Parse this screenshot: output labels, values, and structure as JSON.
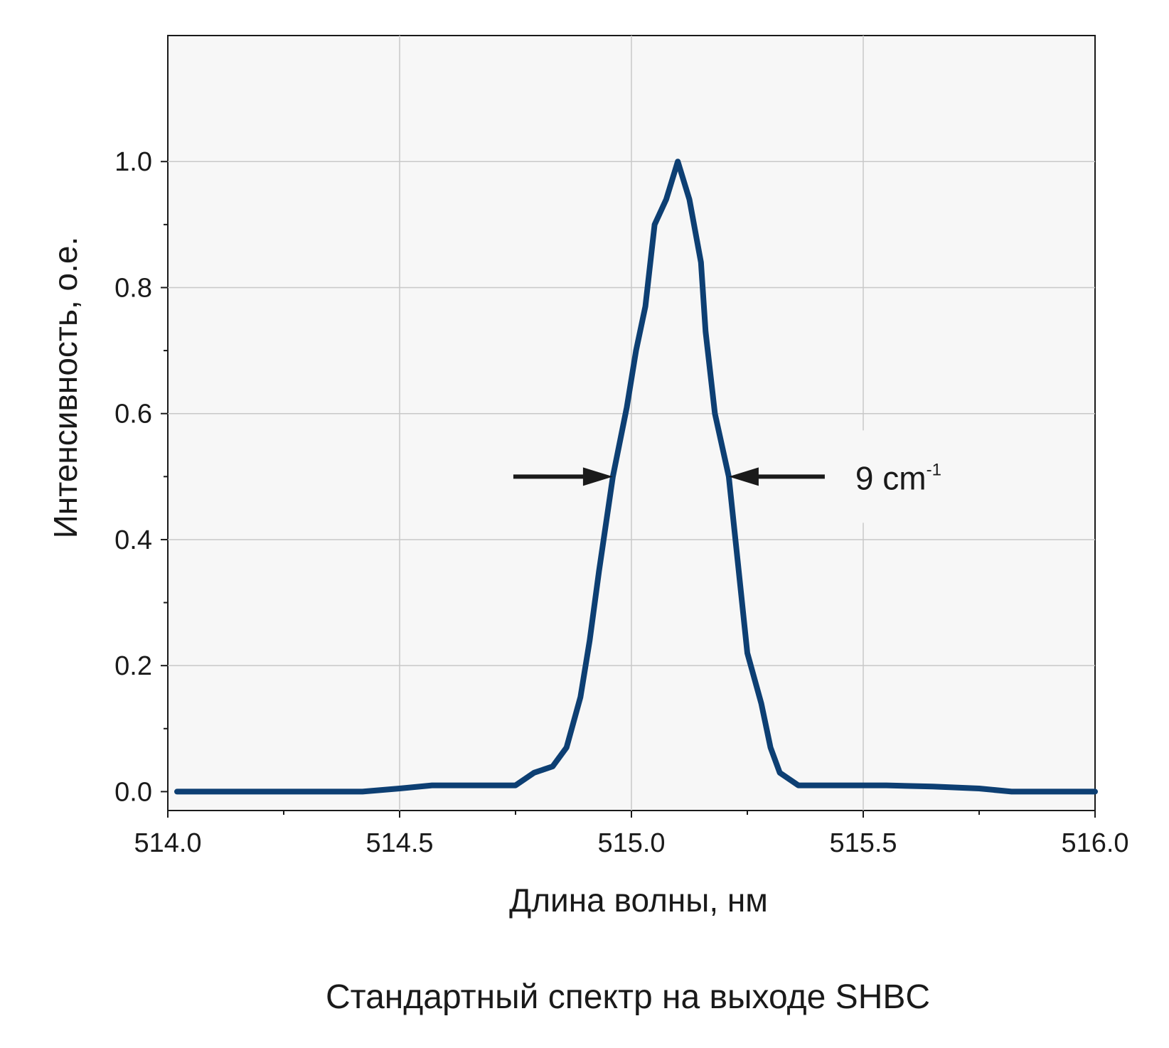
{
  "chart_data": {
    "type": "line",
    "xlabel": "Длина волны, нм",
    "ylabel": "Интенсивность, о.е.",
    "caption": "Стандартный спектр на выходе SHBC",
    "xlim": [
      514.0,
      516.0
    ],
    "ylim": [
      -0.03,
      1.2
    ],
    "x_ticks": [
      "514.0",
      "514.5",
      "515.0",
      "515.5",
      "516.0"
    ],
    "x_tick_values": [
      514.0,
      514.5,
      515.0,
      515.5,
      516.0
    ],
    "y_ticks": [
      "0.0",
      "0.2",
      "0.4",
      "0.6",
      "0.8",
      "1.0"
    ],
    "y_tick_values": [
      0.0,
      0.2,
      0.4,
      0.6,
      0.8,
      1.0
    ],
    "grid": true,
    "series": [
      {
        "color": "#0d3f73",
        "x": [
          514.02,
          514.25,
          514.42,
          514.5,
          514.57,
          514.65,
          514.75,
          514.79,
          514.83,
          514.86,
          514.89,
          514.91,
          514.93,
          514.96,
          514.99,
          515.01,
          515.03,
          515.05,
          515.075,
          515.1,
          515.125,
          515.15,
          515.16,
          515.18,
          515.21,
          515.23,
          515.25,
          515.28,
          515.3,
          515.32,
          515.36,
          515.45,
          515.55,
          515.65,
          515.75,
          515.82,
          515.9,
          516.0
        ],
        "y": [
          0.0,
          0.0,
          0.0,
          0.005,
          0.01,
          0.01,
          0.01,
          0.03,
          0.04,
          0.07,
          0.15,
          0.24,
          0.35,
          0.5,
          0.61,
          0.7,
          0.77,
          0.9,
          0.94,
          1.0,
          0.94,
          0.84,
          0.73,
          0.6,
          0.5,
          0.36,
          0.22,
          0.14,
          0.07,
          0.03,
          0.01,
          0.01,
          0.01,
          0.008,
          0.005,
          0.0,
          0.0,
          0.0
        ]
      }
    ],
    "annotation": {
      "label": "9 cm",
      "superscript": "-1",
      "y": 0.5,
      "x_left": 514.96,
      "x_right": 515.21
    }
  },
  "colors": {
    "plot_background": "#f7f7f7",
    "grid": "#c8c8c8",
    "line": "#0d3f73",
    "arrow": "#1a1a1a"
  }
}
